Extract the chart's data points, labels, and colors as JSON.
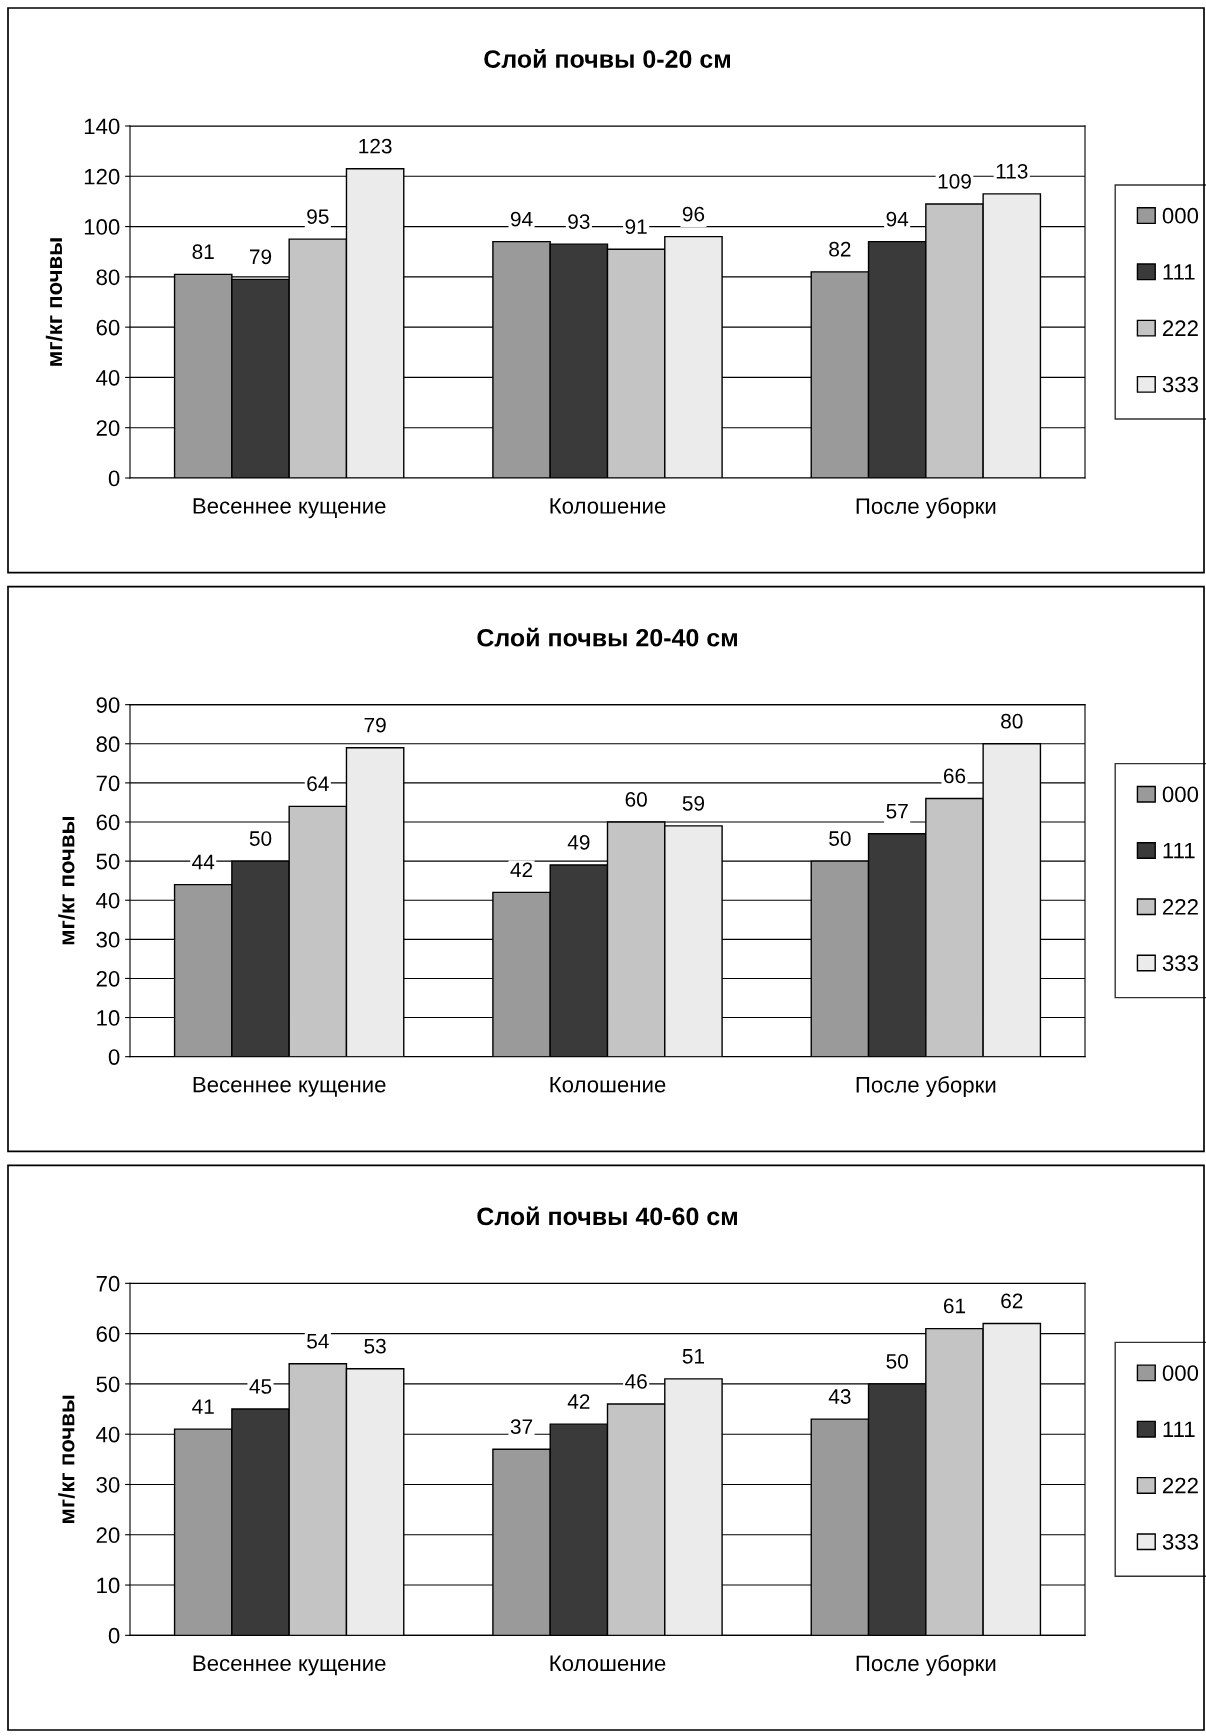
{
  "chart_data": [
    {
      "type": "bar",
      "title": "Слой почвы 0-20 см",
      "ylabel": "мг/кг почвы",
      "categories": [
        "Весеннее кущение",
        "Колошение",
        "После уборки"
      ],
      "ylim": [
        0,
        140
      ],
      "yticks": [
        0,
        20,
        40,
        60,
        80,
        100,
        120,
        140
      ],
      "grid": "y",
      "legend": "right",
      "data_labels": true,
      "series": [
        {
          "name": "000",
          "color": "#9a9a9a",
          "values": [
            81,
            94,
            82
          ]
        },
        {
          "name": "111",
          "color": "#3a3a3a",
          "values": [
            79,
            93,
            94
          ]
        },
        {
          "name": "222",
          "color": "#c4c4c4",
          "values": [
            95,
            91,
            109
          ]
        },
        {
          "name": "333",
          "color": "#ebebeb",
          "values": [
            123,
            96,
            113
          ]
        }
      ]
    },
    {
      "type": "bar",
      "title": "Слой почвы 20-40 см",
      "ylabel": "мг/кг почвы",
      "categories": [
        "Весеннее кущение",
        "Колошение",
        "После уборки"
      ],
      "ylim": [
        0,
        90
      ],
      "yticks": [
        0,
        10,
        20,
        30,
        40,
        50,
        60,
        70,
        80,
        90
      ],
      "grid": "y",
      "legend": "right",
      "data_labels": true,
      "series": [
        {
          "name": "000",
          "color": "#9a9a9a",
          "values": [
            44,
            42,
            50
          ]
        },
        {
          "name": "111",
          "color": "#3a3a3a",
          "values": [
            50,
            49,
            57
          ]
        },
        {
          "name": "222",
          "color": "#c4c4c4",
          "values": [
            64,
            60,
            66
          ]
        },
        {
          "name": "333",
          "color": "#ebebeb",
          "values": [
            79,
            59,
            80
          ]
        }
      ]
    },
    {
      "type": "bar",
      "title": "Слой почвы 40-60 см",
      "ylabel": "мг/кг почвы",
      "categories": [
        "Весеннее кущение",
        "Колошение",
        "После уборки"
      ],
      "ylim": [
        0,
        70
      ],
      "yticks": [
        0,
        10,
        20,
        30,
        40,
        50,
        60,
        70
      ],
      "grid": "y",
      "legend": "right",
      "data_labels": true,
      "series": [
        {
          "name": "000",
          "color": "#9a9a9a",
          "values": [
            41,
            37,
            43
          ]
        },
        {
          "name": "111",
          "color": "#3a3a3a",
          "values": [
            45,
            42,
            50
          ]
        },
        {
          "name": "222",
          "color": "#c4c4c4",
          "values": [
            54,
            46,
            61
          ]
        },
        {
          "name": "333",
          "color": "#ebebeb",
          "values": [
            53,
            51,
            62
          ]
        }
      ]
    }
  ]
}
